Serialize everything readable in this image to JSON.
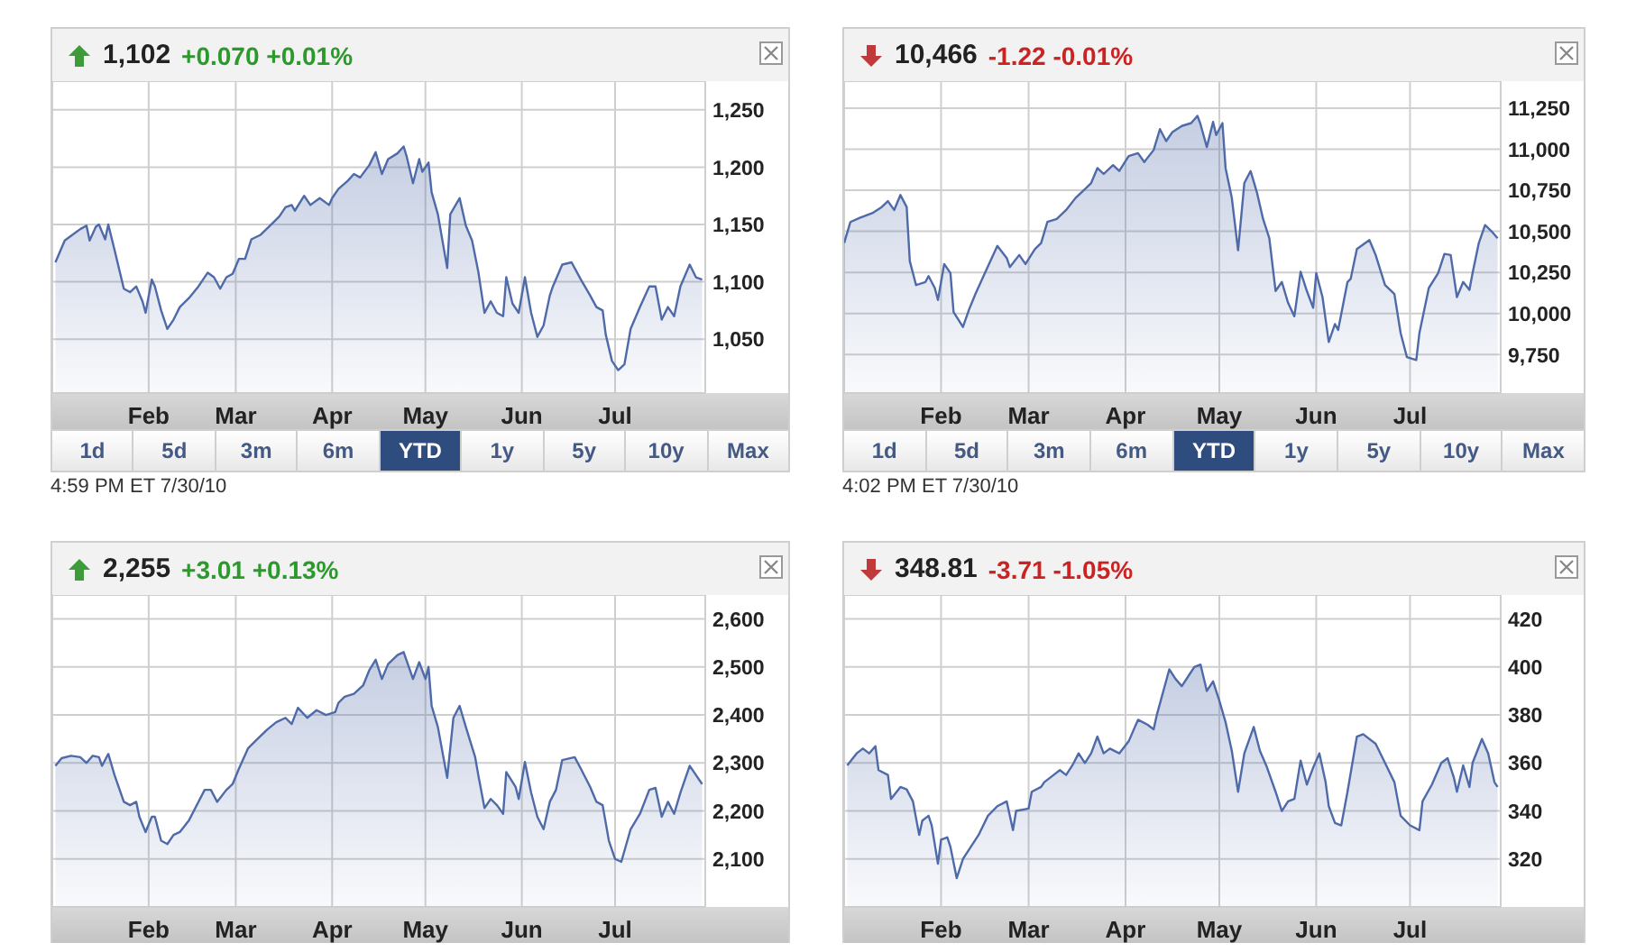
{
  "chart_data": [
    {
      "type": "area",
      "title": "1,102",
      "subtitle": "+0.070 +0.01%",
      "grid": true,
      "legend": false,
      "x": [
        "--01-02",
        "--01-05",
        "--01-10",
        "--01-12",
        "--01-13",
        "--01-15",
        "--01-16",
        "--01-18",
        "--01-19",
        "--01-21",
        "--01-24",
        "--01-26",
        "--01-28",
        "--01-30",
        "--01-31",
        "--02-02",
        "--02-03",
        "--02-05",
        "--02-07",
        "--02-09",
        "--02-11",
        "--02-14",
        "--02-17",
        "--02-20",
        "--02-22",
        "--02-24",
        "--02-26",
        "--02-28",
        "--03-02",
        "--03-04",
        "--03-06",
        "--03-09",
        "--03-12",
        "--03-15",
        "--03-17",
        "--03-19",
        "--03-20",
        "--03-23",
        "--03-25",
        "--03-28",
        "--03-31",
        "--04-01",
        "--04-03",
        "--04-06",
        "--04-08",
        "--04-10",
        "--04-13",
        "--04-15",
        "--04-17",
        "--04-19",
        "--04-22",
        "--04-24",
        "--04-25",
        "--04-27",
        "--04-29",
        "--04-30",
        "--05-02",
        "--05-03",
        "--05-05",
        "--05-08",
        "--05-09",
        "--05-12",
        "--05-14",
        "--05-16",
        "--05-18",
        "--05-20",
        "--05-22",
        "--05-24",
        "--05-26",
        "--05-27",
        "--05-29",
        "--05-31",
        "--06-02",
        "--06-04",
        "--06-06",
        "--06-08",
        "--06-10",
        "--06-11",
        "--06-14",
        "--06-17",
        "--06-20",
        "--06-23",
        "--06-25",
        "--06-27",
        "--06-28",
        "--06-30",
        "--07-02",
        "--07-04",
        "--07-06",
        "--07-09",
        "--07-12",
        "--07-14",
        "--07-16",
        "--07-18",
        "--07-20",
        "--07-22",
        "--07-25",
        "--07-27",
        "--07-29"
      ],
      "series": [
        {
          "color": "#4f6aa8",
          "values": [
            1117,
            1136,
            1146,
            1149,
            1136,
            1148,
            1150,
            1137,
            1150,
            1128,
            1094,
            1091,
            1096,
            1083,
            1073,
            1102,
            1096,
            1075,
            1059,
            1067,
            1078,
            1086,
            1096,
            1108,
            1104,
            1094,
            1104,
            1107,
            1120,
            1120,
            1137,
            1141,
            1149,
            1157,
            1165,
            1167,
            1162,
            1175,
            1167,
            1173,
            1167,
            1173,
            1181,
            1188,
            1194,
            1191,
            1202,
            1213,
            1194,
            1207,
            1212,
            1218,
            1209,
            1186,
            1207,
            1196,
            1204,
            1178,
            1159,
            1112,
            1159,
            1173,
            1149,
            1136,
            1109,
            1073,
            1083,
            1073,
            1070,
            1104,
            1081,
            1073,
            1104,
            1073,
            1052,
            1062,
            1088,
            1096,
            1115,
            1117,
            1102,
            1088,
            1078,
            1075,
            1054,
            1031,
            1023,
            1028,
            1059,
            1078,
            1096,
            1096,
            1067,
            1078,
            1070,
            1096,
            1115,
            1104,
            1102
          ]
        }
      ],
      "xlim": [
        "--01-01",
        "--07-30"
      ],
      "xticks": [
        {
          "value": "--02-01",
          "label": "Feb"
        },
        {
          "value": "--03-01",
          "label": "Mar"
        },
        {
          "value": "--04-01",
          "label": "Apr"
        },
        {
          "value": "--05-01",
          "label": "May"
        },
        {
          "value": "--06-01",
          "label": "Jun"
        },
        {
          "value": "--07-01",
          "label": "Jul"
        }
      ],
      "ylim": [
        1003,
        1275
      ],
      "yticks": [
        {
          "value": 1050,
          "label": "1,050"
        },
        {
          "value": 1100,
          "label": "1,100"
        },
        {
          "value": 1150,
          "label": "1,150"
        },
        {
          "value": 1200,
          "label": "1,200"
        },
        {
          "value": 1250,
          "label": "1,250"
        }
      ],
      "annotations": [
        "1d",
        "5d",
        "3m",
        "6m",
        "YTD",
        "1y",
        "5y",
        "10y",
        "Max",
        "4:59 PM ET 7/30/10"
      ]
    },
    {
      "type": "area",
      "title": "10,466",
      "subtitle": "-1.22 -0.01%",
      "grid": true,
      "legend": false,
      "x": [
        "--01-01",
        "--01-03",
        "--01-06",
        "--01-10",
        "--01-13",
        "--01-15",
        "--01-17",
        "--01-19",
        "--01-21",
        "--01-22",
        "--01-24",
        "--01-27",
        "--01-28",
        "--01-30",
        "--01-31",
        "--02-02",
        "--02-04",
        "--02-05",
        "--02-08",
        "--02-10",
        "--02-12",
        "--02-15",
        "--02-19",
        "--02-22",
        "--02-23",
        "--02-26",
        "--02-28",
        "--03-03",
        "--03-05",
        "--03-07",
        "--03-10",
        "--03-13",
        "--03-16",
        "--03-19",
        "--03-21",
        "--03-23",
        "--03-25",
        "--03-28",
        "--03-30",
        "--04-02",
        "--04-05",
        "--04-07",
        "--04-10",
        "--04-12",
        "--04-14",
        "--04-16",
        "--04-19",
        "--04-22",
        "--04-24",
        "--04-25",
        "--04-27",
        "--04-29",
        "--04-30",
        "--05-02",
        "--05-03",
        "--05-05",
        "--05-07",
        "--05-09",
        "--05-11",
        "--05-13",
        "--05-15",
        "--05-17",
        "--05-19",
        "--05-21",
        "--05-23",
        "--05-25",
        "--05-27",
        "--05-29",
        "--05-31",
        "--06-01",
        "--06-03",
        "--06-05",
        "--06-07",
        "--06-08",
        "--06-11",
        "--06-12",
        "--06-14",
        "--06-18",
        "--06-20",
        "--06-23",
        "--06-26",
        "--06-28",
        "--06-30",
        "--07-03",
        "--07-04",
        "--07-07",
        "--07-10",
        "--07-12",
        "--07-14",
        "--07-16",
        "--07-18",
        "--07-20",
        "--07-21",
        "--07-23",
        "--07-25",
        "--07-27",
        "--07-29"
      ],
      "series": [
        {
          "color": "#4f6aa8",
          "values": [
            10429,
            10557,
            10582,
            10611,
            10648,
            10684,
            10630,
            10721,
            10648,
            10319,
            10173,
            10192,
            10228,
            10155,
            10082,
            10301,
            10246,
            10009,
            9918,
            10027,
            10119,
            10246,
            10411,
            10338,
            10283,
            10356,
            10301,
            10392,
            10429,
            10557,
            10575,
            10630,
            10703,
            10757,
            10794,
            10885,
            10849,
            10903,
            10867,
            10958,
            10976,
            10922,
            10995,
            11122,
            11049,
            11104,
            11141,
            11159,
            11203,
            11151,
            11013,
            11166,
            11086,
            11159,
            10885,
            10703,
            10385,
            10794,
            10867,
            10739,
            10575,
            10458,
            10137,
            10192,
            10064,
            9983,
            10254,
            10137,
            10035,
            10246,
            10100,
            9827,
            9936,
            9900,
            10192,
            10210,
            10392,
            10447,
            10356,
            10173,
            10119,
            9881,
            9735,
            9717,
            9881,
            10155,
            10246,
            10363,
            10356,
            10100,
            10192,
            10144,
            10246,
            10429,
            10538,
            10502,
            10458
          ]
        }
      ],
      "xlim": [
        "--01-01",
        "--07-30"
      ],
      "xticks": [
        {
          "value": "--02-01",
          "label": "Feb"
        },
        {
          "value": "--03-01",
          "label": "Mar"
        },
        {
          "value": "--04-01",
          "label": "Apr"
        },
        {
          "value": "--05-01",
          "label": "May"
        },
        {
          "value": "--06-01",
          "label": "Jun"
        },
        {
          "value": "--07-01",
          "label": "Jul"
        }
      ],
      "ylim": [
        9516,
        11414
      ],
      "yticks": [
        {
          "value": 9750,
          "label": "9,750"
        },
        {
          "value": 10000,
          "label": "10,000"
        },
        {
          "value": 10250,
          "label": "10,250"
        },
        {
          "value": 10500,
          "label": "10,500"
        },
        {
          "value": 10750,
          "label": "10,750"
        },
        {
          "value": 11000,
          "label": "11,000"
        },
        {
          "value": 11250,
          "label": "11,250"
        }
      ],
      "annotations": [
        "1d",
        "5d",
        "3m",
        "6m",
        "YTD",
        "1y",
        "5y",
        "10y",
        "Max",
        "4:02 PM ET 7/30/10"
      ]
    },
    {
      "type": "area",
      "title": "2,255",
      "subtitle": "+3.01 +0.13%",
      "grid": true,
      "legend": false,
      "x": [
        "--01-02",
        "--01-04",
        "--01-07",
        "--01-10",
        "--01-12",
        "--01-14",
        "--01-16",
        "--01-17",
        "--01-19",
        "--01-21",
        "--01-24",
        "--01-26",
        "--01-28",
        "--01-29",
        "--01-31",
        "--02-02",
        "--02-03",
        "--02-05",
        "--02-07",
        "--02-09",
        "--02-11",
        "--02-14",
        "--02-17",
        "--02-19",
        "--02-21",
        "--02-23",
        "--02-26",
        "--02-28",
        "--03-02",
        "--03-05",
        "--03-08",
        "--03-11",
        "--03-14",
        "--03-17",
        "--03-19",
        "--03-21",
        "--03-24",
        "--03-27",
        "--03-30",
        "--04-02",
        "--04-03",
        "--04-05",
        "--04-08",
        "--04-11",
        "--04-13",
        "--04-15",
        "--04-17",
        "--04-19",
        "--04-22",
        "--04-24",
        "--04-26",
        "--04-27",
        "--04-29",
        "--05-01",
        "--05-02",
        "--05-03",
        "--05-05",
        "--05-08",
        "--05-10",
        "--05-12",
        "--05-14",
        "--05-17",
        "--05-18",
        "--05-20",
        "--05-22",
        "--05-24",
        "--05-26",
        "--05-27",
        "--05-30",
        "--05-31",
        "--06-02",
        "--06-04",
        "--06-06",
        "--06-08",
        "--06-10",
        "--06-12",
        "--06-14",
        "--06-18",
        "--06-20",
        "--06-23",
        "--06-25",
        "--06-27",
        "--06-29",
        "--07-01",
        "--07-03",
        "--07-06",
        "--07-09",
        "--07-12",
        "--07-14",
        "--07-16",
        "--07-18",
        "--07-20",
        "--07-22",
        "--07-25",
        "--07-27",
        "--07-29"
      ],
      "series": [
        {
          "color": "#4f6aa8",
          "values": [
            2294,
            2310,
            2315,
            2312,
            2300,
            2315,
            2312,
            2294,
            2319,
            2275,
            2219,
            2212,
            2219,
            2188,
            2156,
            2188,
            2188,
            2138,
            2131,
            2150,
            2156,
            2181,
            2219,
            2244,
            2244,
            2219,
            2244,
            2256,
            2288,
            2331,
            2350,
            2369,
            2385,
            2394,
            2381,
            2415,
            2394,
            2410,
            2400,
            2406,
            2425,
            2438,
            2444,
            2462,
            2494,
            2515,
            2475,
            2506,
            2525,
            2531,
            2494,
            2475,
            2510,
            2475,
            2500,
            2419,
            2375,
            2269,
            2394,
            2419,
            2375,
            2312,
            2275,
            2206,
            2225,
            2212,
            2194,
            2281,
            2250,
            2225,
            2302,
            2238,
            2188,
            2162,
            2219,
            2244,
            2306,
            2312,
            2288,
            2250,
            2219,
            2212,
            2138,
            2100,
            2094,
            2162,
            2194,
            2244,
            2248,
            2188,
            2219,
            2194,
            2238,
            2294,
            2275,
            2256
          ]
        }
      ],
      "xlim": [
        "--01-01",
        "--07-30"
      ],
      "xticks": [
        {
          "value": "--02-01",
          "label": "Feb"
        },
        {
          "value": "--03-01",
          "label": "Mar"
        },
        {
          "value": "--04-01",
          "label": "Apr"
        },
        {
          "value": "--05-01",
          "label": "May"
        },
        {
          "value": "--06-01",
          "label": "Jun"
        },
        {
          "value": "--07-01",
          "label": "Jul"
        }
      ],
      "ylim": [
        2000,
        2650
      ],
      "yticks": [
        {
          "value": 2100,
          "label": "2,100"
        },
        {
          "value": 2200,
          "label": "2,200"
        },
        {
          "value": 2300,
          "label": "2,300"
        },
        {
          "value": 2400,
          "label": "2,400"
        },
        {
          "value": 2500,
          "label": "2,500"
        },
        {
          "value": 2600,
          "label": "2,600"
        }
      ]
    },
    {
      "type": "area",
      "title": "348.81",
      "subtitle": "-3.71 -1.05%",
      "grid": true,
      "legend": false,
      "x": [
        "--01-02",
        "--01-05",
        "--01-07",
        "--01-09",
        "--01-11",
        "--01-12",
        "--01-15",
        "--01-16",
        "--01-19",
        "--01-21",
        "--01-23",
        "--01-25",
        "--01-26",
        "--01-28",
        "--01-29",
        "--01-31",
        "--02-01",
        "--02-03",
        "--02-04",
        "--02-06",
        "--02-08",
        "--02-10",
        "--02-13",
        "--02-16",
        "--02-19",
        "--02-22",
        "--02-24",
        "--02-25",
        "--03-01",
        "--03-02",
        "--03-05",
        "--03-06",
        "--03-09",
        "--03-11",
        "--03-13",
        "--03-15",
        "--03-17",
        "--03-19",
        "--03-21",
        "--03-23",
        "--03-25",
        "--03-27",
        "--03-30",
        "--04-02",
        "--04-04",
        "--04-05",
        "--04-08",
        "--04-10",
        "--04-11",
        "--04-15",
        "--04-17",
        "--04-19",
        "--04-21",
        "--04-23",
        "--04-25",
        "--04-27",
        "--04-29",
        "--05-01",
        "--05-03",
        "--05-05",
        "--05-07",
        "--05-09",
        "--05-12",
        "--05-14",
        "--05-16",
        "--05-19",
        "--05-21",
        "--05-23",
        "--05-25",
        "--05-27",
        "--05-29",
        "--05-31",
        "--06-02",
        "--06-04",
        "--06-05",
        "--06-07",
        "--06-09",
        "--06-11",
        "--06-14",
        "--06-16",
        "--06-20",
        "--06-23",
        "--06-26",
        "--06-28",
        "--07-01",
        "--07-04",
        "--07-05",
        "--07-08",
        "--07-11",
        "--07-13",
        "--07-15",
        "--07-16",
        "--07-18",
        "--07-20",
        "--07-21",
        "--07-24",
        "--07-26",
        "--07-28",
        "--07-29"
      ],
      "series": [
        {
          "color": "#4f6aa8",
          "values": [
            359,
            364,
            366,
            364,
            367,
            357,
            355,
            345,
            350,
            349,
            344,
            330,
            336,
            338,
            334,
            318,
            328,
            329,
            325,
            312,
            320,
            324,
            330,
            338,
            342,
            344,
            332,
            340,
            341,
            348,
            350,
            352,
            355,
            357,
            355,
            359,
            364,
            360,
            364,
            371,
            364,
            366,
            364,
            369,
            375,
            378,
            376,
            374,
            380,
            399,
            395,
            392,
            396,
            400,
            401,
            390,
            394,
            386,
            377,
            365,
            348,
            364,
            375,
            365,
            359,
            348,
            340,
            344,
            345,
            361,
            351,
            358,
            364,
            352,
            342,
            335,
            334,
            348,
            371,
            372,
            368,
            360,
            352,
            338,
            334,
            332,
            344,
            351,
            360,
            362,
            354,
            348,
            359,
            350,
            360,
            370,
            364,
            352,
            350
          ]
        }
      ],
      "xlim": [
        "--01-01",
        "--07-30"
      ],
      "xticks": [
        {
          "value": "--02-01",
          "label": "Feb"
        },
        {
          "value": "--03-01",
          "label": "Mar"
        },
        {
          "value": "--04-01",
          "label": "Apr"
        },
        {
          "value": "--05-01",
          "label": "May"
        },
        {
          "value": "--06-01",
          "label": "Jun"
        },
        {
          "value": "--07-01",
          "label": "Jul"
        }
      ],
      "ylim": [
        300,
        430
      ],
      "yticks": [
        320,
        340,
        360,
        380,
        400,
        420
      ]
    }
  ]
}
